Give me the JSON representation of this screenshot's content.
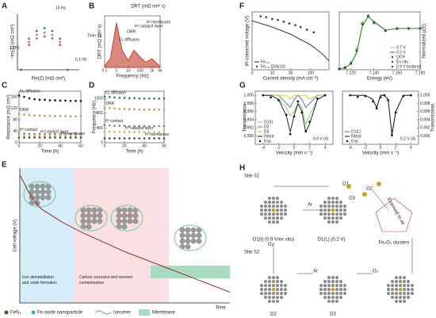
{
  "panel_labels": [
    "A",
    "B",
    "C",
    "D",
    "E",
    "F",
    "G",
    "H"
  ],
  "chart_data": [
    {
      "type": "line",
      "x_label": "Re(Z) (mΩ cm²)",
      "y_label": "−Im(Z) (mΩ cm²)",
      "xlim": [
        0,
        160
      ],
      "ylim": [
        0,
        100
      ],
      "legend": "none",
      "annotations": [
        "10 Hz",
        "1 kHz",
        "0.1 Hz",
        "Time (h)"
      ],
      "x": [
        10,
        30,
        50,
        70,
        90,
        110,
        130
      ],
      "series": [
        {
          "color": "#d9534f",
          "style": "dots",
          "values": [
            0,
            44.7,
            56.6,
            60,
            56.6,
            44.7,
            0
          ]
        },
        {
          "color": "#b07aa1",
          "style": "dots",
          "values": [
            0,
            50,
            63,
            67,
            63,
            50,
            0
          ]
        },
        {
          "color": "#4a6fb5",
          "style": "dots",
          "values": [
            0,
            56,
            70,
            75,
            70,
            56,
            0
          ]
        }
      ]
    },
    {
      "type": "line",
      "title": "DRT (mΩ cm² s)",
      "x_label": "Frequency (Hz)",
      "y_label": "DRT (mΩ cm² s)",
      "xlog": true,
      "xlim": [
        0.1,
        5000
      ],
      "ylim": [
        0,
        60
      ],
      "xticks": [
        0.1,
        1,
        10,
        100,
        {
          "value": 1000,
          "label": "1k"
        },
        {
          "value": 5000,
          "label": "5k"
        }
      ],
      "legend": "none",
      "annotations": [
        "O₂ diffusion",
        "ORR",
        "H⁺catalyst layer",
        "H⁺membrane"
      ],
      "x": [
        0.1,
        0.3,
        1,
        3,
        10,
        30,
        100,
        300,
        1000,
        3000,
        5000
      ],
      "series": [
        {
          "color": "#c0392b",
          "style": "area",
          "values": [
            2,
            10,
            52,
            20,
            8,
            20,
            12,
            6,
            10,
            4,
            1
          ]
        }
      ]
    },
    {
      "type": "line",
      "x_label": "Time (h)",
      "y_label": "Resistance (mΩ cm²)",
      "xlim": [
        0,
        60
      ],
      "ylim": [
        0,
        180
      ],
      "xticks": [
        0,
        20,
        40,
        60
      ],
      "yticks": [
        0,
        40,
        80,
        120,
        160
      ],
      "legend": "inline",
      "x": [
        0,
        5,
        10,
        15,
        20,
        25,
        30,
        35,
        40,
        45,
        50,
        55,
        60
      ],
      "series": [
        {
          "name": "O₂ diffusion",
          "color": "#222222",
          "style": "dots",
          "values": [
            165,
            160,
            155,
            152,
            150,
            150,
            148,
            148,
            147,
            147,
            146,
            146,
            146
          ]
        },
        {
          "name": "ORR",
          "color": "#c8a060",
          "style": "dots",
          "values": [
            100,
            98,
            96,
            95,
            95,
            94,
            94,
            93,
            93,
            93,
            92,
            92,
            92
          ]
        },
        {
          "name": "H⁺contact",
          "color": "#888888",
          "style": "dots",
          "values": [
            32,
            32,
            31,
            31,
            31,
            31,
            30,
            30,
            30,
            30,
            30,
            30,
            30
          ]
        },
        {
          "name": "H⁺catalyst layer",
          "color": "#d9b36a",
          "style": "dots",
          "values": [
            26,
            26,
            26,
            25,
            25,
            25,
            25,
            25,
            25,
            25,
            25,
            25,
            25
          ]
        },
        {
          "name": "H⁺membrane",
          "color": "#555555",
          "style": "dots",
          "values": [
            18,
            18,
            18,
            18,
            18,
            18,
            18,
            18,
            18,
            18,
            18,
            18,
            18
          ]
        }
      ]
    },
    {
      "type": "line",
      "x_label": "Time (h)",
      "y_label": "Frequency (Hz)",
      "xlim": [
        0,
        60
      ],
      "ylim": [
        0,
        1400
      ],
      "xticks": [
        0,
        20,
        40,
        60
      ],
      "yticks": [
        0,
        400,
        800,
        1200
      ],
      "legend": "inline",
      "x": [
        0,
        5,
        10,
        15,
        20,
        25,
        30,
        35,
        40,
        45,
        50,
        55,
        60
      ],
      "series": [
        {
          "name": "O₂ diffusion",
          "color": "#2e8b57",
          "style": "dots",
          "values": [
            1250,
            1240,
            1230,
            1220,
            1220,
            1210,
            1210,
            1200,
            1200,
            1200,
            1200,
            1200,
            1200
          ]
        },
        {
          "name": "ORR",
          "color": "#c8a060",
          "style": "dots",
          "values": [
            950,
            940,
            930,
            920,
            920,
            910,
            910,
            900,
            900,
            900,
            900,
            900,
            900
          ]
        },
        {
          "name": "H⁺contact",
          "color": "#888888",
          "style": "dots",
          "values": [
            480,
            470,
            460,
            460,
            455,
            450,
            450,
            450,
            450,
            450,
            450,
            450,
            450
          ]
        },
        {
          "name": "H⁺catalyst layer",
          "color": "#d9b36a",
          "style": "dots",
          "values": [
            300,
            300,
            295,
            295,
            290,
            290,
            290,
            290,
            290,
            290,
            290,
            290,
            290
          ]
        },
        {
          "name": "H⁺membrane",
          "color": "#555555",
          "style": "dots",
          "values": [
            120,
            120,
            120,
            118,
            118,
            118,
            118,
            118,
            118,
            118,
            118,
            118,
            118
          ]
        }
      ]
    },
    {
      "type": "line",
      "x_label": "Time",
      "y_label": "Cell voltage (V)",
      "xlim": [
        0,
        1
      ],
      "ylim": [
        0,
        1
      ],
      "legend": "none",
      "annotations": [
        "Iron demetallation and oxide formation",
        "Carbon corrosion and ionomer contamination"
      ],
      "x": [
        0,
        0.05,
        0.1,
        0.2,
        0.3,
        0.4,
        0.5,
        0.6,
        0.7,
        0.8,
        0.9,
        1
      ],
      "series": [
        {
          "color": "#8b1a1a",
          "style": "line",
          "values": [
            0.95,
            0.8,
            0.7,
            0.6,
            0.52,
            0.45,
            0.38,
            0.32,
            0.26,
            0.2,
            0.14,
            0.08
          ]
        }
      ]
    },
    {
      "type": "line",
      "x_label": "Current density (mA cm⁻²)",
      "y_label": "iR-corrected voltage (V)",
      "xlog": true,
      "xlim": [
        3,
        300
      ],
      "ylim": [
        0.3,
        0.95
      ],
      "xticks": [
        3,
        10,
        30,
        100
      ],
      "legend": "lower left",
      "series": [
        {
          "name": "Fe₂.₅",
          "color": "#222222",
          "style": "line",
          "x": [
            3,
            10,
            30,
            100,
            200,
            300
          ],
          "values": [
            0.85,
            0.78,
            0.7,
            0.58,
            0.48,
            0.4
          ]
        },
        {
          "name": "Fe₂.₅ 0SS(10)",
          "color": "#444444",
          "style": "dots",
          "x": [
            5,
            7,
            10,
            14,
            20,
            28,
            40,
            55,
            80,
            120
          ],
          "values": [
            0.9,
            0.89,
            0.87,
            0.86,
            0.84,
            0.82,
            0.8,
            0.78,
            0.75,
            0.72
          ]
        }
      ]
    },
    {
      "type": "line",
      "x_label": "Energy (eV)",
      "y_label": "Normalized μ(E)",
      "y_side": "right",
      "xlim": [
        7110,
        7180
      ],
      "ylim": [
        0,
        1.4
      ],
      "xticks": [
        {
          "value": 7120,
          "label": "7,120"
        },
        {
          "value": 7140,
          "label": "7,140"
        },
        {
          "value": 7160,
          "label": "7,160"
        },
        {
          "value": 7180,
          "label": "7,180"
        }
      ],
      "legend": "lower right",
      "x": [
        7110,
        7115,
        7120,
        7125,
        7130,
        7135,
        7140,
        7150,
        7160,
        7170,
        7180
      ],
      "series": [
        {
          "name": "0.7 V",
          "color": "#9bd67f",
          "style": "line",
          "values": [
            0.02,
            0.05,
            0.15,
            0.45,
            1.1,
            1.3,
            1.15,
            0.95,
            1.0,
            1.0,
            1.0
          ]
        },
        {
          "name": "0.2 V",
          "color": "#2e7d32",
          "style": "line",
          "values": [
            0.02,
            0.05,
            0.14,
            0.4,
            1.05,
            1.28,
            1.17,
            0.96,
            1.0,
            1.0,
            1.0
          ]
        },
        {
          "name": "OCP",
          "color": "#1b5e20",
          "style": "dots",
          "marker": "triangle",
          "values": [
            0.02,
            0.05,
            0.16,
            0.47,
            1.12,
            1.31,
            1.14,
            0.95,
            1.0,
            1.0,
            1.0
          ]
        },
        {
          "name": "Ex situ",
          "color": "#1b5e20",
          "style": "dots",
          "marker": "diamond",
          "values": [
            0.03,
            0.06,
            0.17,
            0.5,
            1.14,
            1.29,
            1.13,
            0.94,
            0.99,
            1.0,
            1.0
          ]
        },
        {
          "name": "0.9 V footprint",
          "color": "#1b5e20",
          "style": "dots",
          "marker": "circle",
          "values": [
            0.02,
            0.05,
            0.15,
            0.46,
            1.1,
            1.3,
            1.15,
            0.95,
            1.0,
            1.0,
            1.0
          ]
        }
      ]
    },
    {
      "type": "line",
      "x_label": "Velocity (mm s⁻¹)",
      "y_label": "Transmission",
      "xlim": [
        -5,
        5
      ],
      "ylim": [
        0.988,
        1.001
      ],
      "xticks": [
        -4,
        -2,
        0,
        2,
        4
      ],
      "yticks": [
        {
          "value": 0.99,
          "label": "0.990"
        },
        {
          "value": 0.992,
          "label": "0.992"
        },
        {
          "value": 0.994,
          "label": "0.994"
        },
        {
          "value": 0.996,
          "label": "0.996"
        },
        {
          "value": 0.998,
          "label": "0.998"
        },
        {
          "value": 1,
          "label": "1.000"
        }
      ],
      "legend": "lower left",
      "annotations": [
        "0.9 V (4)"
      ],
      "x": [
        -4,
        -3,
        -2,
        -1,
        -0.5,
        0,
        0.5,
        1,
        1.5,
        2,
        3,
        4
      ],
      "series": [
        {
          "name": "D1(I)",
          "color": "#7cc576",
          "style": "line",
          "values": [
            1,
            1,
            0.999,
            0.997,
            0.995,
            0.996,
            0.998,
            0.997,
            0.993,
            0.995,
            0.999,
            1
          ]
        },
        {
          "name": "D2",
          "color": "#3f6fd1",
          "style": "line",
          "values": [
            1,
            1,
            1,
            0.998,
            0.997,
            0.999,
            1,
            0.999,
            0.997,
            0.998,
            1,
            1
          ]
        },
        {
          "name": "D3",
          "color": "#e0c030",
          "style": "line",
          "values": [
            1,
            1,
            1,
            1,
            0.999,
            1,
            1,
            1,
            1,
            0.999,
            1,
            1
          ]
        },
        {
          "name": "Fitted",
          "color": "#111111",
          "style": "line",
          "values": [
            1,
            1,
            0.999,
            0.995,
            0.991,
            0.995,
            0.998,
            0.996,
            0.991,
            0.993,
            0.999,
            1
          ]
        },
        {
          "name": "Exp.",
          "color": "#111111",
          "style": "dots",
          "values": [
            1,
            0.9995,
            0.9988,
            0.9952,
            0.9905,
            0.9948,
            0.9985,
            0.9958,
            0.9912,
            0.9935,
            0.9992,
            1
          ]
        }
      ]
    },
    {
      "type": "line",
      "x_label": "Velocity (mm s⁻¹)",
      "y_label": "Transmission",
      "y_side": "right",
      "xlim": [
        -5,
        5
      ],
      "ylim": [
        0.988,
        1.001
      ],
      "xticks": [
        -4,
        -2,
        0,
        2,
        4
      ],
      "yticks": [
        {
          "value": 0.99,
          "label": "0.990"
        },
        {
          "value": 0.992,
          "label": "0.992"
        },
        {
          "value": 0.994,
          "label": "0.994"
        },
        {
          "value": 0.996,
          "label": "0.996"
        },
        {
          "value": 0.998,
          "label": "0.998"
        },
        {
          "value": 1,
          "label": "1.000"
        }
      ],
      "legend": "lower left",
      "annotations": [
        "0.2 V (4)"
      ],
      "x": [
        -4,
        -3,
        -2,
        -1,
        -0.5,
        0,
        0.5,
        1,
        1.5,
        2,
        3,
        4
      ],
      "series": [
        {
          "name": "D1(L)",
          "color": "#3f6fd1",
          "style": "line",
          "values": [
            1,
            1,
            1,
            0.999,
            0.997,
            1,
            1,
            0.999,
            0.99,
            0.996,
            1,
            1
          ]
        },
        {
          "name": "Fitted",
          "color": "#111111",
          "style": "line",
          "values": [
            1,
            1,
            1,
            0.999,
            0.997,
            1,
            1,
            0.999,
            0.9905,
            0.996,
            1,
            1
          ]
        },
        {
          "name": "Exp.",
          "color": "#111111",
          "style": "dots",
          "values": [
            1,
            0.9996,
            0.9998,
            0.9985,
            0.9968,
            0.9995,
            1,
            0.9988,
            0.9902,
            0.9958,
            0.9998,
            1
          ]
        }
      ]
    }
  ],
  "legend_e": [
    "FeN₄",
    "Fe oxide nanoparticle",
    "Ionomer",
    "Membrane"
  ],
  "diagram": {
    "site_s1": "Site S1",
    "site_s2": "Site S2",
    "ar_1": "Ar",
    "ar_2": "Ar",
    "o2_1": "O₂",
    "o2_2": "O₂",
    "exposed": "Exposed to air",
    "clusters": "Fe₂O₃ clusters",
    "d1i": "D1(I) (0.9 V/ex situ)",
    "d1l": "D1(L) (0.2 V)",
    "d2": "D2",
    "d3": "D3",
    "o1": "O1",
    "o2": "O2",
    "o3": "O3"
  }
}
